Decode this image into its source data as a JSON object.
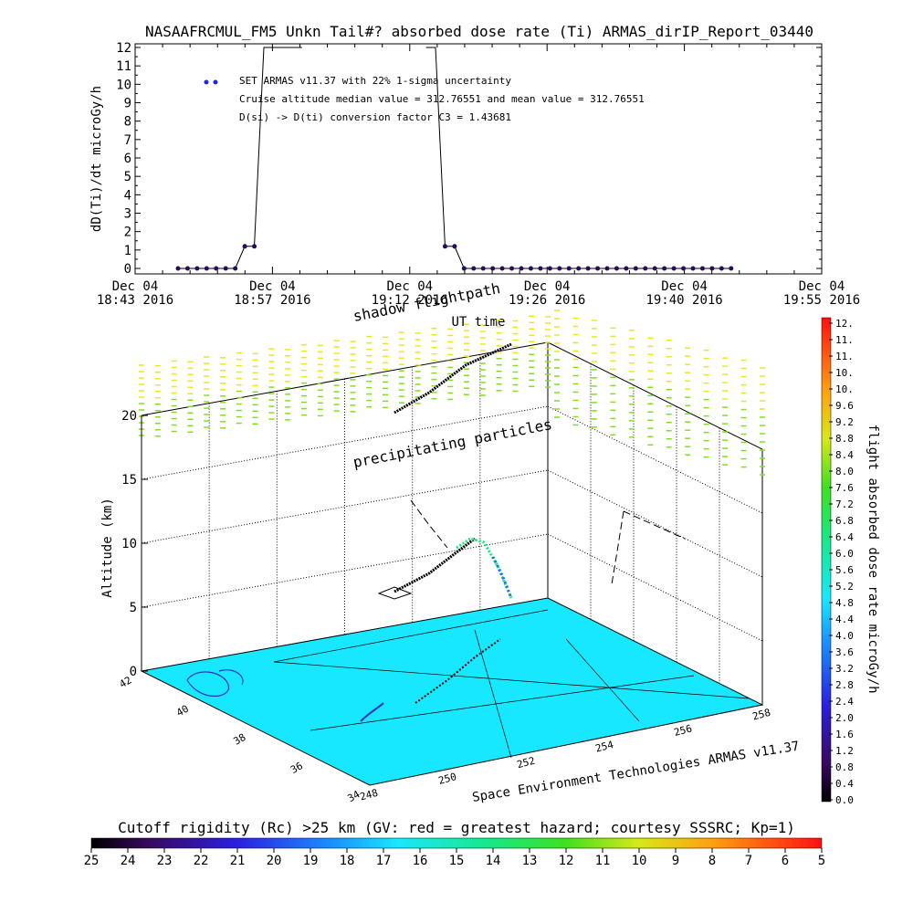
{
  "title": "NASAAFRCMUL_FM5 Unkn Tail#? absorbed dose rate (Ti) ARMAS_dirIP_Report_03440",
  "colors": {
    "series": "#2a0a5e",
    "legend_marker": "#1a2adc",
    "surface": "#18e8ff",
    "frame": "#000000"
  },
  "legend": {
    "line1": "SET ARMAS v11.37 with 22% 1-sigma uncertainty",
    "line2": "Cruise altitude median value = 312.76551 and mean value = 312.76551",
    "line3": "D(si) -> D(ti) conversion factor C3 = 1.43681"
  },
  "chart_data": [
    {
      "type": "line",
      "title": "NASAAFRCMUL_FM5 Unkn Tail#? absorbed dose rate (Ti) ARMAS_dirIP_Report_03440",
      "ylabel": "dD(Ti)/dt microGy/h",
      "xlabel": "UT time",
      "ylim": [
        0,
        12
      ],
      "yticks": [
        "0",
        "1",
        "2",
        "3",
        "4",
        "5",
        "6",
        "7",
        "8",
        "9",
        "10",
        "11",
        "12"
      ],
      "xticks": [
        {
          "l1": "Dec 04",
          "l2": "18:43 2016"
        },
        {
          "l1": "Dec 04",
          "l2": "18:57 2016"
        },
        {
          "l1": "Dec 04",
          "l2": "19:12 2016"
        },
        {
          "l1": "Dec 04",
          "l2": "19:26 2016"
        },
        {
          "l1": "Dec 04",
          "l2": "19:40 2016"
        },
        {
          "l1": "Dec 04",
          "l2": "19:55 2016"
        }
      ],
      "x_minutes_range": [
        0,
        72
      ],
      "series": [
        {
          "x_minutes": [
            4.5,
            5.5,
            6.5,
            7.5,
            8.5,
            9.5,
            10.5,
            11.5,
            12.5,
            13.5,
            14.5,
            15.5,
            16.5,
            17.5,
            30.5,
            31.5,
            32.5,
            33.5,
            34.5,
            35.5,
            36.5,
            37.5,
            38.5,
            39.5,
            40.5,
            41.5,
            42.5,
            43.5,
            44.5,
            45.5,
            46.5,
            47.5,
            48.5,
            49.5,
            50.5,
            51.5,
            52.5,
            53.5,
            54.5,
            55.5,
            56.5,
            57.5,
            58.5,
            59.5,
            60.5,
            61.5,
            62.5
          ],
          "values": [
            0,
            0,
            0,
            0,
            0,
            0,
            0,
            1.2,
            1.2,
            12,
            12,
            12,
            12,
            12,
            12,
            12,
            1.2,
            1.2,
            0,
            0,
            0,
            0,
            0,
            0,
            0,
            0,
            0,
            0,
            0,
            0,
            0,
            0,
            0,
            0,
            0,
            0,
            0,
            0,
            0,
            0,
            0,
            0,
            0,
            0,
            0,
            0,
            0
          ]
        }
      ]
    },
    {
      "type": "scatter",
      "subtype": "3d flight path",
      "zlabel": "Altitude (km)",
      "zticks": [
        "0",
        "5",
        "10",
        "15",
        "20"
      ],
      "zlim": [
        0,
        20
      ],
      "lat_ticks": [
        "42",
        "40",
        "38",
        "36",
        "34"
      ],
      "lon_ticks": [
        "248",
        "250",
        "252",
        "254",
        "256",
        "258"
      ],
      "annotations": [
        "shadow flightpath",
        "precipitating particles"
      ],
      "credit": "Space Environment Technologies ARMAS v11.37"
    }
  ],
  "dose_colorbar": {
    "label": "flight absorbed dose rate microGy/h",
    "ticks": [
      "0.0",
      "0.4",
      "0.8",
      "1.2",
      "1.6",
      "2.0",
      "2.4",
      "2.8",
      "3.2",
      "3.6",
      "4.0",
      "4.4",
      "4.8",
      "5.2",
      "5.6",
      "6.0",
      "6.4",
      "6.8",
      "7.2",
      "7.6",
      "8.0",
      "8.4",
      "8.8",
      "9.2",
      "9.6",
      "10.",
      "10.",
      "11.",
      "11.",
      "12."
    ]
  },
  "rigidity_colorbar": {
    "label": "Cutoff rigidity (Rc) >25 km (GV: red = greatest hazard; courtesy SSSRC; Kp=1)",
    "ticks": [
      "25",
      "24",
      "23",
      "22",
      "21",
      "20",
      "19",
      "18",
      "17",
      "16",
      "15",
      "14",
      "13",
      "12",
      "11",
      "10",
      "9",
      "8",
      "7",
      "6",
      "5"
    ]
  }
}
